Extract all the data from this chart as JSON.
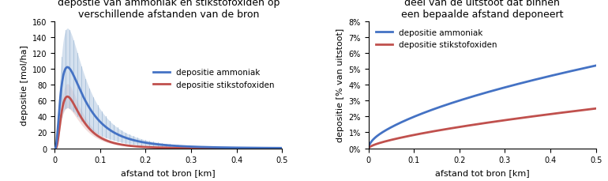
{
  "title_left": "depostie van ammoniak en stikstofoxiden op\nverschillende afstanden van de bron",
  "title_right": "deel van de uitstoot dat binnen\neen bepaalde afstand deponeert",
  "xlabel": "afstand tot bron [km]",
  "ylabel_left": "depositie [mol/ha]",
  "ylabel_right": "depositie [% van uitstoot]",
  "color_blue": "#4472C4",
  "color_red": "#C0504D",
  "color_blue_band": "#B8CCE4",
  "color_red_band": "#F2DCDB",
  "color_blue_tick": "#9BB7D4",
  "legend_ammoniak": "depositie ammoniak",
  "legend_stikstofoxiden": "depositie stikstofoxiden",
  "xlim": [
    0,
    0.5
  ],
  "ylim_left": [
    0,
    160
  ],
  "ylim_right": [
    0,
    0.08
  ],
  "yticks_left": [
    0,
    20,
    40,
    60,
    80,
    100,
    120,
    140,
    160
  ],
  "xticks": [
    0,
    0.1,
    0.2,
    0.3,
    0.4,
    0.5
  ]
}
